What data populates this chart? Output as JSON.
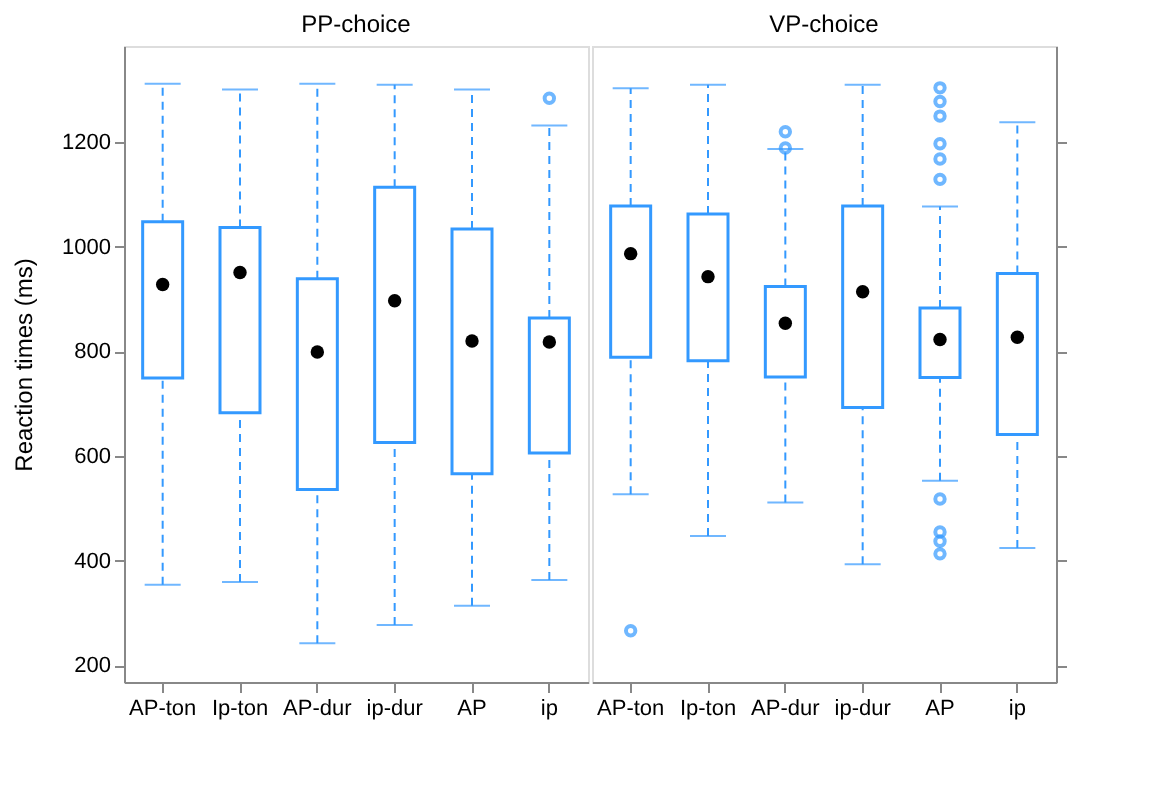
{
  "chart_data": [
    {
      "type": "box",
      "title": "PP-choice",
      "ylabel": "Reaction times (ms)",
      "color": "#3399ff",
      "grid": false,
      "categories": [
        "AP-ton",
        "Ip-ton",
        "AP-dur",
        "ip-dur",
        "AP",
        "ip"
      ],
      "ylim": [
        168,
        1384
      ],
      "yticks": [
        200,
        400,
        600,
        800,
        1000,
        1200
      ],
      "boxes": [
        {
          "low": 354,
          "q1": 749,
          "median": 928,
          "q3": 1048,
          "high": 1312
        },
        {
          "low": 359,
          "q1": 683,
          "median": 951,
          "q3": 1037,
          "high": 1301
        },
        {
          "low": 242,
          "q1": 536,
          "median": 799,
          "q3": 939,
          "high": 1312
        },
        {
          "low": 277,
          "q1": 626,
          "median": 897,
          "q3": 1114,
          "high": 1310
        },
        {
          "low": 314,
          "q1": 566,
          "median": 820,
          "q3": 1034,
          "high": 1301
        },
        {
          "low": 363,
          "q1": 606,
          "median": 818,
          "q3": 864,
          "high": 1232,
          "outliers": [
            1284
          ]
        }
      ]
    },
    {
      "type": "box",
      "title": "VP-choice",
      "color": "#3399ff",
      "grid": false,
      "tick_labels": "x",
      "categories": [
        "AP-ton",
        "Ip-ton",
        "AP-dur",
        "ip-dur",
        "AP",
        "ip"
      ],
      "ylim": [
        168,
        1384
      ],
      "yticks": [
        200,
        400,
        600,
        800,
        1000,
        1200
      ],
      "boxes": [
        {
          "low": 527,
          "q1": 789,
          "median": 987,
          "q3": 1078,
          "high": 1303,
          "outliers": [
            266
          ]
        },
        {
          "low": 447,
          "q1": 782,
          "median": 943,
          "q3": 1063,
          "high": 1310
        },
        {
          "low": 511,
          "q1": 751,
          "median": 854,
          "q3": 924,
          "high": 1187,
          "outliers": [
            1189,
            1220
          ]
        },
        {
          "low": 393,
          "q1": 693,
          "median": 914,
          "q3": 1078,
          "high": 1310
        },
        {
          "low": 553,
          "q1": 750,
          "median": 823,
          "q3": 883,
          "high": 1077,
          "outliers": [
            1304,
            1278,
            1250,
            1197,
            1168,
            1129,
            518,
            455,
            437,
            413
          ]
        },
        {
          "low": 424,
          "q1": 641,
          "median": 827,
          "q3": 949,
          "high": 1238
        }
      ]
    }
  ]
}
